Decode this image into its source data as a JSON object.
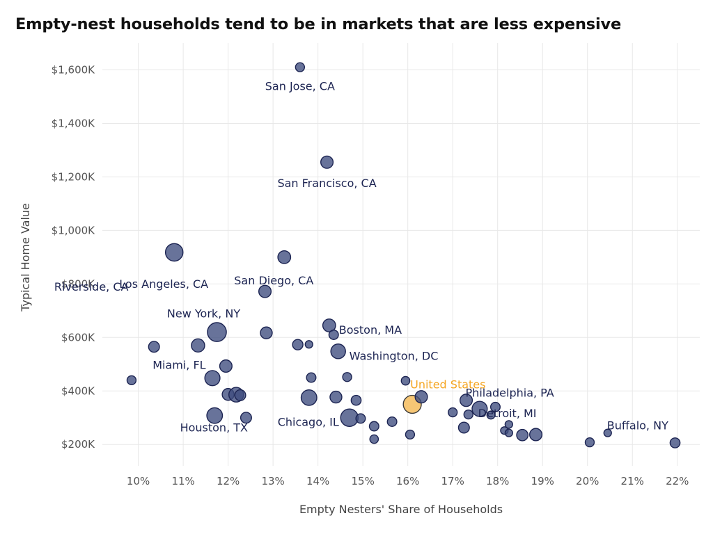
{
  "chart_data": {
    "type": "scatter",
    "title": "Empty-nest households tend to be in markets that are less expensive",
    "xlabel": "Empty Nesters' Share of Households",
    "ylabel": "Typical Home Value",
    "xlim": [
      9.2,
      22.5
    ],
    "ylim": [
      120000,
      1700000
    ],
    "x_ticks": [
      10,
      11,
      12,
      13,
      14,
      15,
      16,
      17,
      18,
      19,
      20,
      21,
      22
    ],
    "x_tick_labels": [
      "10%",
      "11%",
      "12%",
      "13%",
      "14%",
      "15%",
      "16%",
      "17%",
      "18%",
      "19%",
      "20%",
      "21%",
      "22%"
    ],
    "y_ticks": [
      200000,
      400000,
      600000,
      800000,
      1000000,
      1200000,
      1400000,
      1600000
    ],
    "y_tick_labels": [
      "$200K",
      "$400K",
      "$600K",
      "$800K",
      "$1,000K",
      "$1,200K",
      "$1,400K",
      "$1,600K"
    ],
    "grid": true,
    "colors": {
      "metro": "#3d4b7d",
      "metro_stroke": "#1c2452",
      "us": "#f5c36e",
      "us_stroke": "#3a3a3a",
      "label": "#1c2452",
      "us_label": "#f5a623"
    },
    "points": [
      {
        "label": "San Jose, CA",
        "x": 13.6,
        "y": 1610000,
        "size": 1.9
      },
      {
        "label": "San Francisco, CA",
        "x": 14.2,
        "y": 1255000,
        "size": 2.6
      },
      {
        "label": "Los Angeles, CA",
        "x": 10.8,
        "y": 918000,
        "size": 3.7
      },
      {
        "label": "San Diego, CA",
        "x": 13.25,
        "y": 900000,
        "size": 2.7
      },
      {
        "label": "",
        "x": 12.82,
        "y": 772000,
        "size": 2.6
      },
      {
        "label": "New York, NY",
        "x": 11.75,
        "y": 620000,
        "size": 4.0
      },
      {
        "label": "",
        "x": 12.85,
        "y": 617000,
        "size": 2.5
      },
      {
        "label": "Boston, MA",
        "x": 14.25,
        "y": 645000,
        "size": 2.7
      },
      {
        "label": "",
        "x": 14.35,
        "y": 610000,
        "size": 2.0
      },
      {
        "label": "",
        "x": 13.55,
        "y": 573000,
        "size": 2.2
      },
      {
        "label": "",
        "x": 13.8,
        "y": 574000,
        "size": 1.6
      },
      {
        "label": "Washington, DC",
        "x": 14.45,
        "y": 548000,
        "size": 3.1
      },
      {
        "label": "Riverside, CA",
        "x": 10.35,
        "y": 565000,
        "size": 2.3
      },
      {
        "label": "",
        "x": 11.33,
        "y": 570000,
        "size": 2.8
      },
      {
        "label": "Miami, FL",
        "x": 11.95,
        "y": 493000,
        "size": 2.6
      },
      {
        "label": "",
        "x": 9.85,
        "y": 440000,
        "size": 1.9
      },
      {
        "label": "",
        "x": 11.65,
        "y": 448000,
        "size": 3.2
      },
      {
        "label": "",
        "x": 13.85,
        "y": 450000,
        "size": 2.0
      },
      {
        "label": "",
        "x": 14.65,
        "y": 452000,
        "size": 1.9
      },
      {
        "label": "",
        "x": 12.0,
        "y": 387000,
        "size": 2.5
      },
      {
        "label": "",
        "x": 12.18,
        "y": 386000,
        "size": 3.1
      },
      {
        "label": "",
        "x": 12.27,
        "y": 384000,
        "size": 2.3
      },
      {
        "label": "",
        "x": 13.8,
        "y": 375000,
        "size": 3.3
      },
      {
        "label": "",
        "x": 14.4,
        "y": 377000,
        "size": 2.5
      },
      {
        "label": "",
        "x": 14.85,
        "y": 365000,
        "size": 2.1
      },
      {
        "label": "United States",
        "x": 16.1,
        "y": 350000,
        "size": 3.8,
        "us": true
      },
      {
        "label": "",
        "x": 15.95,
        "y": 438000,
        "size": 1.8
      },
      {
        "label": "",
        "x": 16.3,
        "y": 378000,
        "size": 2.6
      },
      {
        "label": "Houston, TX",
        "x": 11.7,
        "y": 308000,
        "size": 3.3
      },
      {
        "label": "",
        "x": 12.4,
        "y": 300000,
        "size": 2.3
      },
      {
        "label": "Chicago, IL",
        "x": 14.7,
        "y": 300000,
        "size": 3.7
      },
      {
        "label": "",
        "x": 14.95,
        "y": 297000,
        "size": 2.0
      },
      {
        "label": "",
        "x": 15.25,
        "y": 268000,
        "size": 2.0
      },
      {
        "label": "",
        "x": 15.65,
        "y": 285000,
        "size": 2.0
      },
      {
        "label": "",
        "x": 15.25,
        "y": 220000,
        "size": 1.8
      },
      {
        "label": "",
        "x": 16.05,
        "y": 237000,
        "size": 1.9
      },
      {
        "label": "",
        "x": 17.0,
        "y": 320000,
        "size": 1.9
      },
      {
        "label": "Philadelphia, PA",
        "x": 17.3,
        "y": 365000,
        "size": 2.6
      },
      {
        "label": "",
        "x": 17.35,
        "y": 312000,
        "size": 1.9
      },
      {
        "label": "",
        "x": 17.6,
        "y": 333000,
        "size": 3.2
      },
      {
        "label": "",
        "x": 17.85,
        "y": 310000,
        "size": 1.7
      },
      {
        "label": "",
        "x": 17.95,
        "y": 340000,
        "size": 2.0
      },
      {
        "label": "",
        "x": 17.25,
        "y": 263000,
        "size": 2.3
      },
      {
        "label": "",
        "x": 18.15,
        "y": 252000,
        "size": 1.6
      },
      {
        "label": "",
        "x": 18.25,
        "y": 275000,
        "size": 1.6
      },
      {
        "label": "",
        "x": 18.25,
        "y": 243000,
        "size": 1.6
      },
      {
        "label": "",
        "x": 18.55,
        "y": 235000,
        "size": 2.4
      },
      {
        "label": "Detroit, MI",
        "x": 18.85,
        "y": 237000,
        "size": 2.6
      },
      {
        "label": "",
        "x": 20.05,
        "y": 208000,
        "size": 1.9
      },
      {
        "label": "Buffalo, NY",
        "x": 20.45,
        "y": 243000,
        "size": 1.6
      },
      {
        "label": "",
        "x": 21.95,
        "y": 206000,
        "size": 2.1
      }
    ]
  }
}
